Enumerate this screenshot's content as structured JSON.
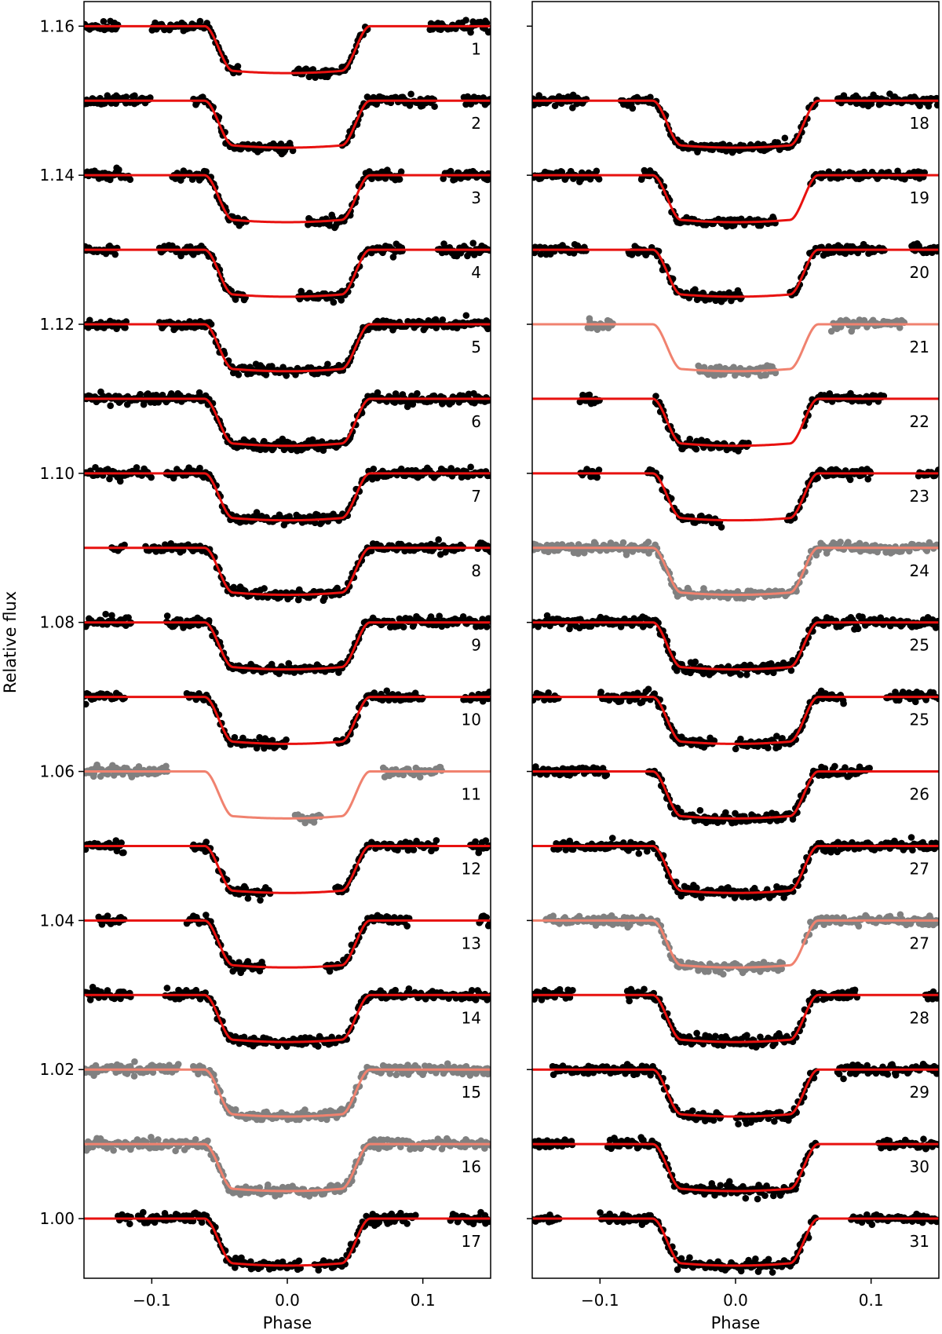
{
  "figure": {
    "ylabel": "Relative flux",
    "xlabel": "Phase"
  },
  "colors": {
    "data_good": "#000000",
    "data_rejected": "#808080",
    "model_good": "#e8110f",
    "model_rejected": "#f0826f"
  },
  "chart_data": [
    {
      "type": "scatter",
      "panel": "left",
      "xlabel": "Phase",
      "ylabel": "Relative flux",
      "xlim": [
        -0.15,
        0.15
      ],
      "ylim": [
        0.992,
        1.1633
      ],
      "x_ticks": [
        -0.1,
        0.0,
        0.1
      ],
      "x_tick_labels": [
        "−0.1",
        "0.0",
        "0.1"
      ],
      "y_ticks": [
        1.0,
        1.02,
        1.04,
        1.06,
        1.08,
        1.1,
        1.12,
        1.14,
        1.16
      ],
      "y_tick_labels": [
        "1.00",
        "1.02",
        "1.04",
        "1.06",
        "1.08",
        "1.10",
        "1.12",
        "1.14",
        "1.16"
      ],
      "transit_model": {
        "depth": 0.0063,
        "half_total_duration": 0.061,
        "half_flat_duration": 0.04,
        "limb_curvature": 0.0003
      },
      "series": [
        {
          "label": "1",
          "baseline": 1.16,
          "rejected": false,
          "gaps": [
            [
              -0.125,
              -0.1
            ],
            [
              -0.035,
              0.005
            ],
            [
              0.06,
              0.105
            ]
          ]
        },
        {
          "label": "2",
          "baseline": 1.15,
          "rejected": false,
          "gaps": [
            [
              -0.1,
              -0.07
            ],
            [
              0.005,
              0.04
            ],
            [
              0.11,
              0.13
            ]
          ]
        },
        {
          "label": "3",
          "baseline": 1.14,
          "rejected": false,
          "gaps": [
            [
              -0.115,
              -0.085
            ],
            [
              -0.03,
              0.015
            ],
            [
              0.085,
              0.115
            ]
          ]
        },
        {
          "label": "4",
          "baseline": 1.13,
          "rejected": false,
          "gaps": [
            [
              -0.125,
              -0.095
            ],
            [
              -0.03,
              0.008
            ],
            [
              0.085,
              0.11
            ]
          ]
        },
        {
          "label": "5",
          "baseline": 1.12,
          "rejected": false,
          "gaps": [
            [
              -0.118,
              -0.095
            ]
          ]
        },
        {
          "label": "6",
          "baseline": 1.11,
          "rejected": false,
          "gaps": []
        },
        {
          "label": "7",
          "baseline": 1.1,
          "rejected": false,
          "gaps": [
            [
              -0.1,
              -0.09
            ]
          ]
        },
        {
          "label": "8",
          "baseline": 1.09,
          "rejected": false,
          "gaps": [
            [
              -0.15,
              -0.13
            ],
            [
              -0.12,
              -0.105
            ],
            [
              0.13,
              0.14
            ]
          ]
        },
        {
          "label": "9",
          "baseline": 1.08,
          "rejected": false,
          "gaps": [
            [
              -0.115,
              -0.09
            ]
          ]
        },
        {
          "label": "10",
          "baseline": 1.07,
          "rejected": false,
          "gaps": [
            [
              -0.12,
              -0.075
            ],
            [
              0.0,
              0.035
            ],
            [
              0.1,
              0.13
            ]
          ]
        },
        {
          "label": "11",
          "baseline": 1.06,
          "rejected": true,
          "gaps": [
            [
              -0.088,
              0.005
            ],
            [
              0.025,
              0.07
            ],
            [
              0.115,
              0.15
            ]
          ]
        },
        {
          "label": "12",
          "baseline": 1.05,
          "rejected": false,
          "gaps": [
            [
              -0.12,
              -0.07
            ],
            [
              -0.012,
              0.035
            ],
            [
              0.11,
              0.135
            ]
          ]
        },
        {
          "label": "13",
          "baseline": 1.04,
          "rejected": false,
          "gaps": [
            [
              -0.15,
              -0.14
            ],
            [
              -0.12,
              -0.075
            ],
            [
              -0.018,
              0.028
            ],
            [
              0.09,
              0.14
            ]
          ]
        },
        {
          "label": "14",
          "baseline": 1.03,
          "rejected": false,
          "gaps": [
            [
              -0.115,
              -0.09
            ]
          ]
        },
        {
          "label": "15",
          "baseline": 1.02,
          "rejected": true,
          "gaps": [
            [
              -0.08,
              -0.07
            ]
          ]
        },
        {
          "label": "16",
          "baseline": 1.01,
          "rejected": true,
          "gaps": []
        },
        {
          "label": "17",
          "baseline": 1.0,
          "rejected": false,
          "gaps": [
            [
              -0.15,
              -0.125
            ],
            [
              -0.115,
              -0.11
            ],
            [
              0.01,
              0.02
            ],
            [
              0.095,
              0.12
            ]
          ]
        }
      ]
    },
    {
      "type": "scatter",
      "panel": "right",
      "xlabel": "Phase",
      "ylabel": "Relative flux",
      "xlim": [
        -0.15,
        0.15
      ],
      "ylim": [
        0.992,
        1.1633
      ],
      "x_ticks": [
        -0.1,
        0.0,
        0.1
      ],
      "x_tick_labels": [
        "−0.1",
        "0.0",
        "0.1"
      ],
      "y_ticks": [
        1.0,
        1.02,
        1.04,
        1.06,
        1.08,
        1.1,
        1.12,
        1.14,
        1.16
      ],
      "y_tick_labels": [],
      "transit_model": {
        "depth": 0.0063,
        "half_total_duration": 0.061,
        "half_flat_duration": 0.04,
        "limb_curvature": 0.0003
      },
      "series": [
        {
          "label": "18",
          "baseline": 1.15,
          "rejected": false,
          "gaps": [
            [
              -0.11,
              -0.085
            ],
            [
              0.06,
              0.075
            ]
          ]
        },
        {
          "label": "19",
          "baseline": 1.14,
          "rejected": false,
          "gaps": [
            [
              -0.1,
              -0.07
            ],
            [
              0.03,
              0.055
            ],
            [
              0.14,
              0.15
            ]
          ]
        },
        {
          "label": "20",
          "baseline": 1.13,
          "rejected": false,
          "gaps": [
            [
              -0.11,
              -0.08
            ],
            [
              0.005,
              0.04
            ],
            [
              0.11,
              0.13
            ]
          ]
        },
        {
          "label": "21",
          "baseline": 1.12,
          "rejected": true,
          "gaps": [
            [
              -0.15,
              -0.11
            ],
            [
              -0.09,
              -0.028
            ],
            [
              0.03,
              0.07
            ],
            [
              0.125,
              0.15
            ]
          ]
        },
        {
          "label": "22",
          "baseline": 1.11,
          "rejected": false,
          "gaps": [
            [
              -0.15,
              -0.115
            ],
            [
              -0.1,
              -0.06
            ],
            [
              0.01,
              0.05
            ],
            [
              0.11,
              0.15
            ]
          ]
        },
        {
          "label": "23",
          "baseline": 1.1,
          "rejected": false,
          "gaps": [
            [
              -0.15,
              -0.115
            ],
            [
              -0.1,
              -0.065
            ],
            [
              -0.01,
              0.038
            ],
            [
              0.1,
              0.135
            ]
          ]
        },
        {
          "label": "24",
          "baseline": 1.09,
          "rejected": true,
          "gaps": []
        },
        {
          "label": "25",
          "baseline": 1.08,
          "rejected": false,
          "gaps": []
        },
        {
          "label": "25",
          "baseline": 1.07,
          "rejected": false,
          "gaps": [
            [
              -0.13,
              -0.1
            ],
            [
              -0.015,
              0.0
            ],
            [
              0.08,
              0.11
            ]
          ]
        },
        {
          "label": "26",
          "baseline": 1.06,
          "rejected": false,
          "gaps": [
            [
              -0.095,
              -0.065
            ],
            [
              0.1,
              0.15
            ]
          ]
        },
        {
          "label": "27",
          "baseline": 1.05,
          "rejected": false,
          "gaps": [
            [
              -0.15,
              -0.135
            ]
          ]
        },
        {
          "label": "27",
          "baseline": 1.04,
          "rejected": true,
          "gaps": [
            [
              -0.15,
              -0.14
            ],
            [
              0.035,
              0.05
            ]
          ]
        },
        {
          "label": "28",
          "baseline": 1.03,
          "rejected": false,
          "gaps": [
            [
              -0.12,
              -0.08
            ],
            [
              0.09,
              0.14
            ]
          ]
        },
        {
          "label": "29",
          "baseline": 1.02,
          "rejected": false,
          "gaps": [
            [
              -0.15,
              -0.135
            ],
            [
              -0.01,
              0.0
            ],
            [
              0.06,
              0.075
            ]
          ]
        },
        {
          "label": "30",
          "baseline": 1.01,
          "rejected": false,
          "gaps": [
            [
              -0.12,
              -0.095
            ],
            [
              0.06,
              0.105
            ]
          ]
        },
        {
          "label": "31",
          "baseline": 1.0,
          "rejected": false,
          "gaps": [
            [
              -0.13,
              -0.1
            ],
            [
              0.06,
              0.085
            ]
          ]
        }
      ]
    }
  ]
}
